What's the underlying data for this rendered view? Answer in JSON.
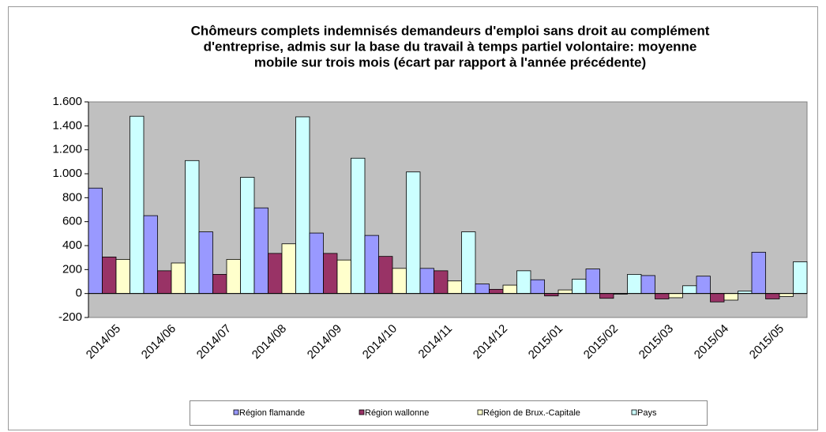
{
  "chart_data": {
    "type": "bar",
    "title": [
      "Chômeurs complets indemnisés demandeurs d'emploi sans droit au complément",
      "d'entreprise, admis sur la base du travail à temps partiel volontaire: moyenne",
      "mobile sur trois mois (écart par rapport à l'année précédente)"
    ],
    "categories": [
      "2014/05",
      "2014/06",
      "2014/07",
      "2014/08",
      "2014/09",
      "2014/10",
      "2014/11",
      "2014/12",
      "2015/01",
      "2015/02",
      "2015/03",
      "2015/04",
      "2015/05"
    ],
    "series": [
      {
        "name": "Région flamande",
        "color": "#9999ff",
        "values": [
          880,
          650,
          515,
          715,
          505,
          485,
          210,
          80,
          115,
          205,
          150,
          145,
          345
        ]
      },
      {
        "name": "Région wallonne",
        "color": "#993366",
        "values": [
          305,
          190,
          160,
          335,
          335,
          310,
          190,
          35,
          -20,
          -40,
          -45,
          -70,
          -45
        ]
      },
      {
        "name": "Région de Brux.-Capitale",
        "color": "#ffffcc",
        "values": [
          285,
          255,
          285,
          415,
          280,
          210,
          105,
          70,
          30,
          -5,
          -35,
          -55,
          -25
        ]
      },
      {
        "name": "Pays",
        "color": "#ccffff",
        "values": [
          1480,
          1110,
          970,
          1475,
          1130,
          1015,
          515,
          190,
          120,
          160,
          65,
          20,
          265
        ]
      }
    ],
    "ylim": [
      -200,
      1600
    ],
    "yticks": [
      -200,
      0,
      200,
      400,
      600,
      800,
      {
        "value": 1000,
        "label": "1.000"
      },
      {
        "value": 1200,
        "label": "1.200"
      },
      {
        "value": 1400,
        "label": "1.400"
      },
      {
        "value": 1600,
        "label": "1.600"
      }
    ],
    "plot_background": "#c0c0c0"
  }
}
